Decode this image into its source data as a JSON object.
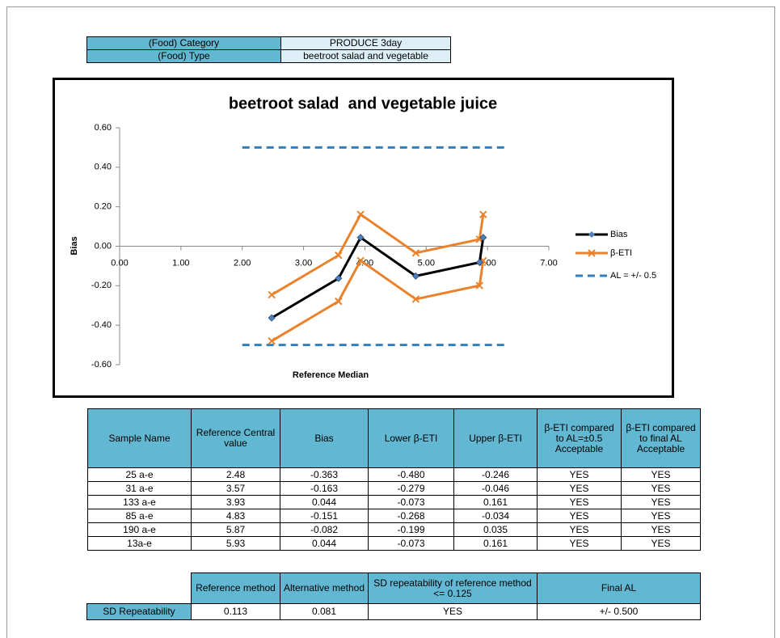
{
  "info": {
    "rows": [
      [
        "(Food) Category",
        "PRODUCE 3day"
      ],
      [
        "(Food) Type",
        "beetroot salad  and vegetable"
      ]
    ]
  },
  "chart_data": {
    "type": "line",
    "title": "beetroot salad  and vegetable juice",
    "x_label": "Reference Median",
    "y_label": "Bias",
    "xlim": [
      0,
      7
    ],
    "ylim": [
      -0.6,
      0.6
    ],
    "xticks": [
      {
        "value": 0,
        "label": "0.00"
      },
      {
        "value": 1,
        "label": "1.00"
      },
      {
        "value": 2,
        "label": "2.00"
      },
      {
        "value": 3,
        "label": "3.00"
      },
      {
        "value": 4,
        "label": "4.00"
      },
      {
        "value": 5,
        "label": "5.00"
      },
      {
        "value": 6,
        "label": "6.00"
      },
      {
        "value": 7,
        "label": "7.00"
      }
    ],
    "yticks": [
      {
        "value": -0.6,
        "label": "-0.60"
      },
      {
        "value": -0.4,
        "label": "-0.40"
      },
      {
        "value": -0.2,
        "label": "-0.20"
      },
      {
        "value": 0,
        "label": "0.00"
      },
      {
        "value": 0.2,
        "label": "0.20"
      },
      {
        "value": 0.4,
        "label": "0.40"
      },
      {
        "value": 0.6,
        "label": "0.60"
      }
    ],
    "x": [
      2.48,
      3.57,
      3.93,
      4.83,
      5.87,
      5.93
    ],
    "series": [
      {
        "name": "Bias",
        "color": "#000000",
        "marker_color": "#4f81bd",
        "values": [
          -0.363,
          -0.163,
          0.044,
          -0.151,
          -0.082,
          0.044
        ]
      },
      {
        "name": "β-ETI",
        "color": "#e9822b",
        "lower": [
          -0.48,
          -0.279,
          -0.073,
          -0.268,
          -0.199,
          -0.073
        ],
        "upper": [
          -0.246,
          -0.046,
          0.161,
          -0.034,
          0.035,
          0.161
        ]
      },
      {
        "name": "AL = +/- 0.5",
        "color": "#2f7fc1",
        "x": [
          2,
          6.3
        ],
        "levels": [
          0.5,
          -0.5
        ]
      }
    ]
  },
  "table": {
    "header": [
      "Sample Name",
      "Reference Central value",
      "Bias",
      "Lower β-ETI",
      "Upper β-ETI",
      "β-ETI compared to AL=±0.5 Acceptable",
      "β-ETI compared to final AL Acceptable"
    ],
    "rows": [
      [
        "25 a-e",
        "2.48",
        "-0.363",
        "-0.480",
        "-0.246",
        "YES",
        "YES"
      ],
      [
        "31 a-e",
        "3.57",
        "-0.163",
        "-0.279",
        "-0.046",
        "YES",
        "YES"
      ],
      [
        "133 a-e",
        "3.93",
        "0.044",
        "-0.073",
        "0.161",
        "YES",
        "YES"
      ],
      [
        "85 a-e",
        "4.83",
        "-0.151",
        "-0.268",
        "-0.034",
        "YES",
        "YES"
      ],
      [
        "190 a-e",
        "5.87",
        "-0.082",
        "-0.199",
        "0.035",
        "YES",
        "YES"
      ],
      [
        "13a-e",
        "5.93",
        "0.044",
        "-0.073",
        "0.161",
        "YES",
        "YES"
      ]
    ]
  },
  "repeatability": {
    "header": [
      "Reference method",
      "Alternative method",
      "SD repeatability of reference method <= 0.125",
      "Final AL"
    ],
    "row": [
      "SD Repeatability",
      "0.113",
      "0.081",
      "YES",
      "+/- 0.500"
    ]
  }
}
